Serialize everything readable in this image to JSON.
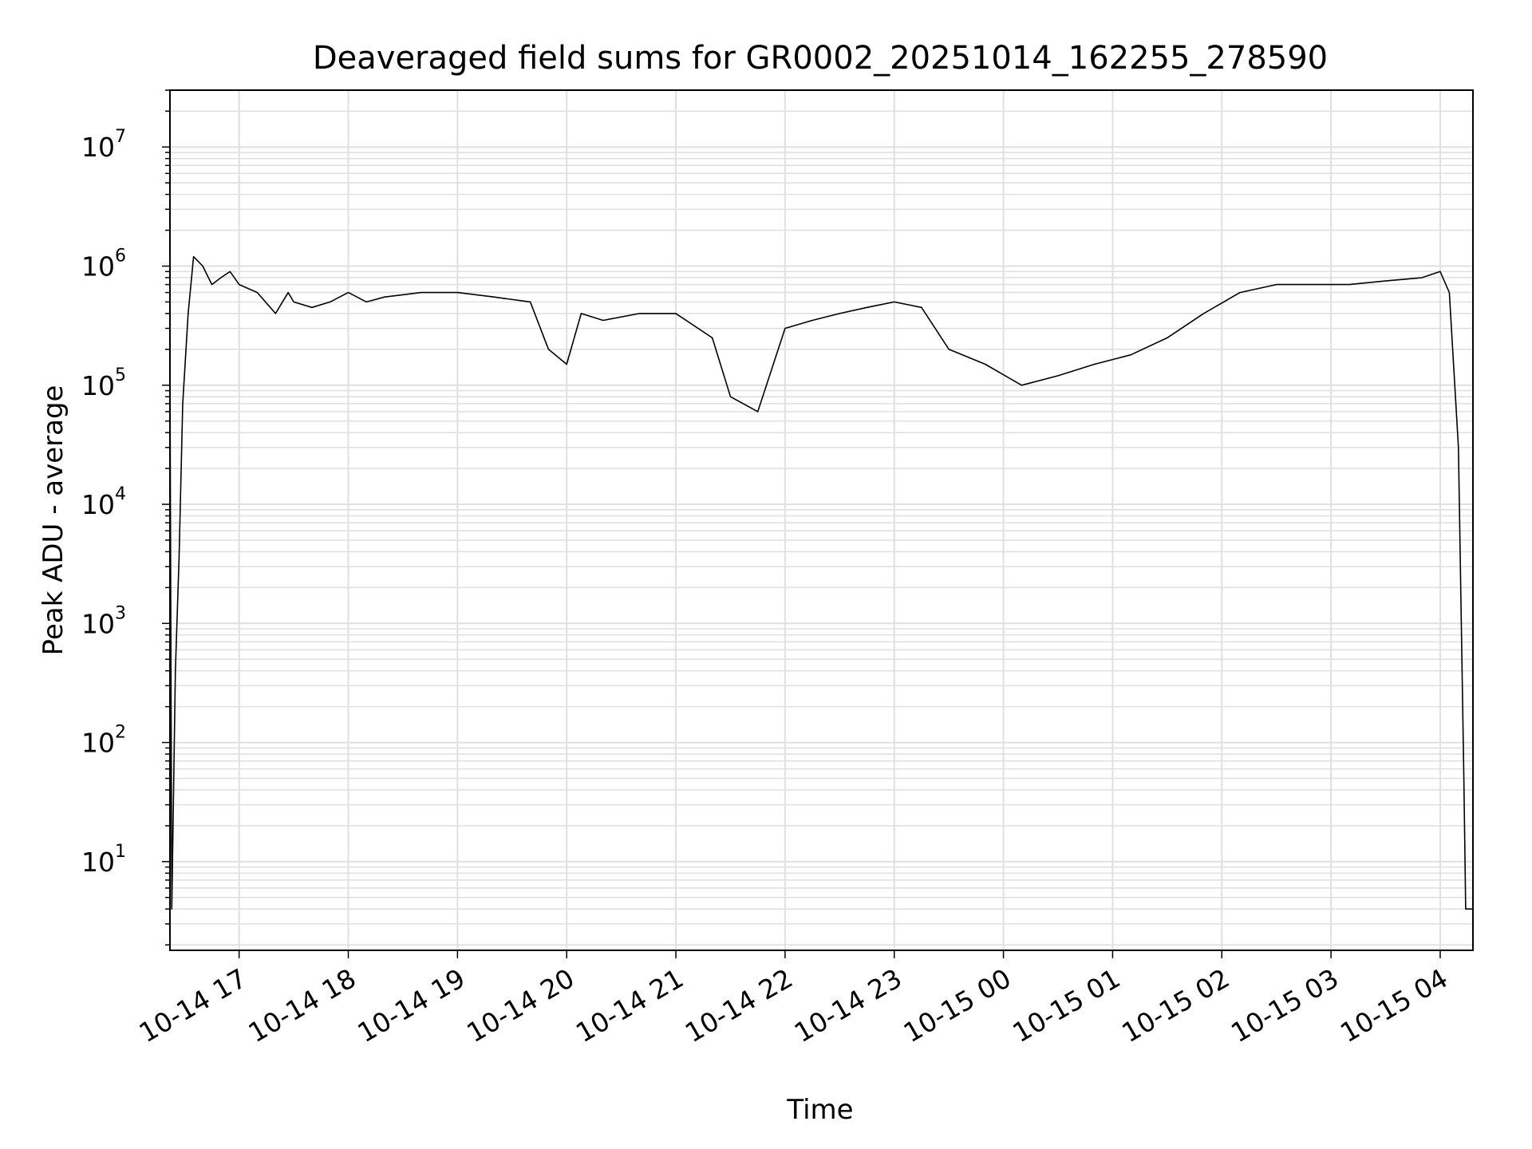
{
  "chart_data": {
    "type": "line",
    "title": "Deaveraged field sums for GR0002_20251014_162255_278590",
    "xlabel": "Time",
    "ylabel": "Peak ADU - average",
    "yscale": "log",
    "ylim": [
      1.8,
      30000000
    ],
    "xlim": [
      "2025-10-14 16:22",
      "2025-10-15 04:18"
    ],
    "grid": true,
    "line_color": "#000000",
    "grid_color": "#e0e0e0",
    "x_ticks": [
      {
        "t": "2025-10-14 17:00",
        "label": "10-14 17"
      },
      {
        "t": "2025-10-14 18:00",
        "label": "10-14 18"
      },
      {
        "t": "2025-10-14 19:00",
        "label": "10-14 19"
      },
      {
        "t": "2025-10-14 20:00",
        "label": "10-14 20"
      },
      {
        "t": "2025-10-14 21:00",
        "label": "10-14 21"
      },
      {
        "t": "2025-10-14 22:00",
        "label": "10-14 22"
      },
      {
        "t": "2025-10-14 23:00",
        "label": "10-14 23"
      },
      {
        "t": "2025-10-15 00:00",
        "label": "10-15 00"
      },
      {
        "t": "2025-10-15 01:00",
        "label": "10-15 01"
      },
      {
        "t": "2025-10-15 02:00",
        "label": "10-15 02"
      },
      {
        "t": "2025-10-15 03:00",
        "label": "10-15 03"
      },
      {
        "t": "2025-10-15 04:00",
        "label": "10-15 04"
      }
    ],
    "y_ticks": [
      {
        "value": 10,
        "base": "10",
        "exp": "1"
      },
      {
        "value": 100,
        "base": "10",
        "exp": "2"
      },
      {
        "value": 1000,
        "base": "10",
        "exp": "3"
      },
      {
        "value": 10000,
        "base": "10",
        "exp": "4"
      },
      {
        "value": 100000,
        "base": "10",
        "exp": "5"
      },
      {
        "value": 1000000,
        "base": "10",
        "exp": "6"
      },
      {
        "value": 10000000,
        "base": "10",
        "exp": "7"
      }
    ],
    "series": [
      {
        "x": [
          "2025-10-14 16:22",
          "2025-10-14 16:23",
          "2025-10-14 16:25",
          "2025-10-14 16:27",
          "2025-10-14 16:29",
          "2025-10-14 16:32",
          "2025-10-14 16:35",
          "2025-10-14 16:40",
          "2025-10-14 16:45",
          "2025-10-14 16:50",
          "2025-10-14 16:55",
          "2025-10-14 17:00",
          "2025-10-14 17:10",
          "2025-10-14 17:20",
          "2025-10-14 17:27",
          "2025-10-14 17:30",
          "2025-10-14 17:40",
          "2025-10-14 17:50",
          "2025-10-14 18:00",
          "2025-10-14 18:10",
          "2025-10-14 18:20",
          "2025-10-14 18:40",
          "2025-10-14 19:00",
          "2025-10-14 19:20",
          "2025-10-14 19:40",
          "2025-10-14 19:50",
          "2025-10-14 20:00",
          "2025-10-14 20:08",
          "2025-10-14 20:20",
          "2025-10-14 20:40",
          "2025-10-14 21:00",
          "2025-10-14 21:20",
          "2025-10-14 21:30",
          "2025-10-14 21:45",
          "2025-10-14 22:00",
          "2025-10-14 22:15",
          "2025-10-14 22:30",
          "2025-10-14 22:45",
          "2025-10-14 23:00",
          "2025-10-14 23:15",
          "2025-10-14 23:30",
          "2025-10-14 23:50",
          "2025-10-15 00:10",
          "2025-10-15 00:30",
          "2025-10-15 00:50",
          "2025-10-15 01:10",
          "2025-10-15 01:30",
          "2025-10-15 01:50",
          "2025-10-15 02:10",
          "2025-10-15 02:30",
          "2025-10-15 02:50",
          "2025-10-15 03:10",
          "2025-10-15 03:30",
          "2025-10-15 03:50",
          "2025-10-15 04:00",
          "2025-10-15 04:05",
          "2025-10-15 04:10",
          "2025-10-15 04:13",
          "2025-10-15 04:14",
          "2025-10-15 04:15",
          "2025-10-15 04:18"
        ],
        "y": [
          140000,
          4,
          400,
          3500,
          70000,
          400000,
          1200000,
          1000000,
          700000,
          800000,
          900000,
          700000,
          600000,
          400000,
          600000,
          500000,
          450000,
          500000,
          600000,
          500000,
          550000,
          600000,
          600000,
          550000,
          500000,
          200000,
          150000,
          400000,
          350000,
          400000,
          400000,
          250000,
          80000,
          60000,
          300000,
          350000,
          400000,
          450000,
          500000,
          450000,
          200000,
          150000,
          100000,
          120000,
          150000,
          180000,
          250000,
          400000,
          600000,
          700000,
          700000,
          700000,
          750000,
          800000,
          900000,
          600000,
          30000,
          50,
          4,
          4,
          4
        ]
      }
    ]
  }
}
